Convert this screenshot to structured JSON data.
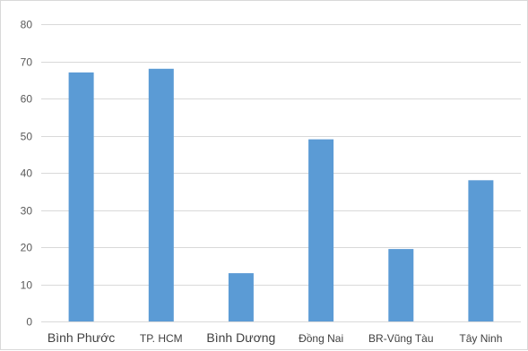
{
  "chart_data": {
    "type": "bar",
    "title": "",
    "xlabel": "",
    "ylabel": "",
    "categories": [
      "Bình Phước",
      "TP. HCM",
      "Bình Dương",
      "Đồng Nai",
      "BR-Vũng Tàu",
      "Tây Ninh"
    ],
    "values": [
      67,
      68,
      13,
      49,
      19.5,
      38
    ],
    "ylim": [
      0,
      80
    ],
    "yticks": [
      0,
      10,
      20,
      30,
      40,
      50,
      60,
      70,
      80
    ],
    "grid": true,
    "legend": "none",
    "bar_color": "#5b9bd5",
    "grid_color": "#d9d9d9"
  }
}
